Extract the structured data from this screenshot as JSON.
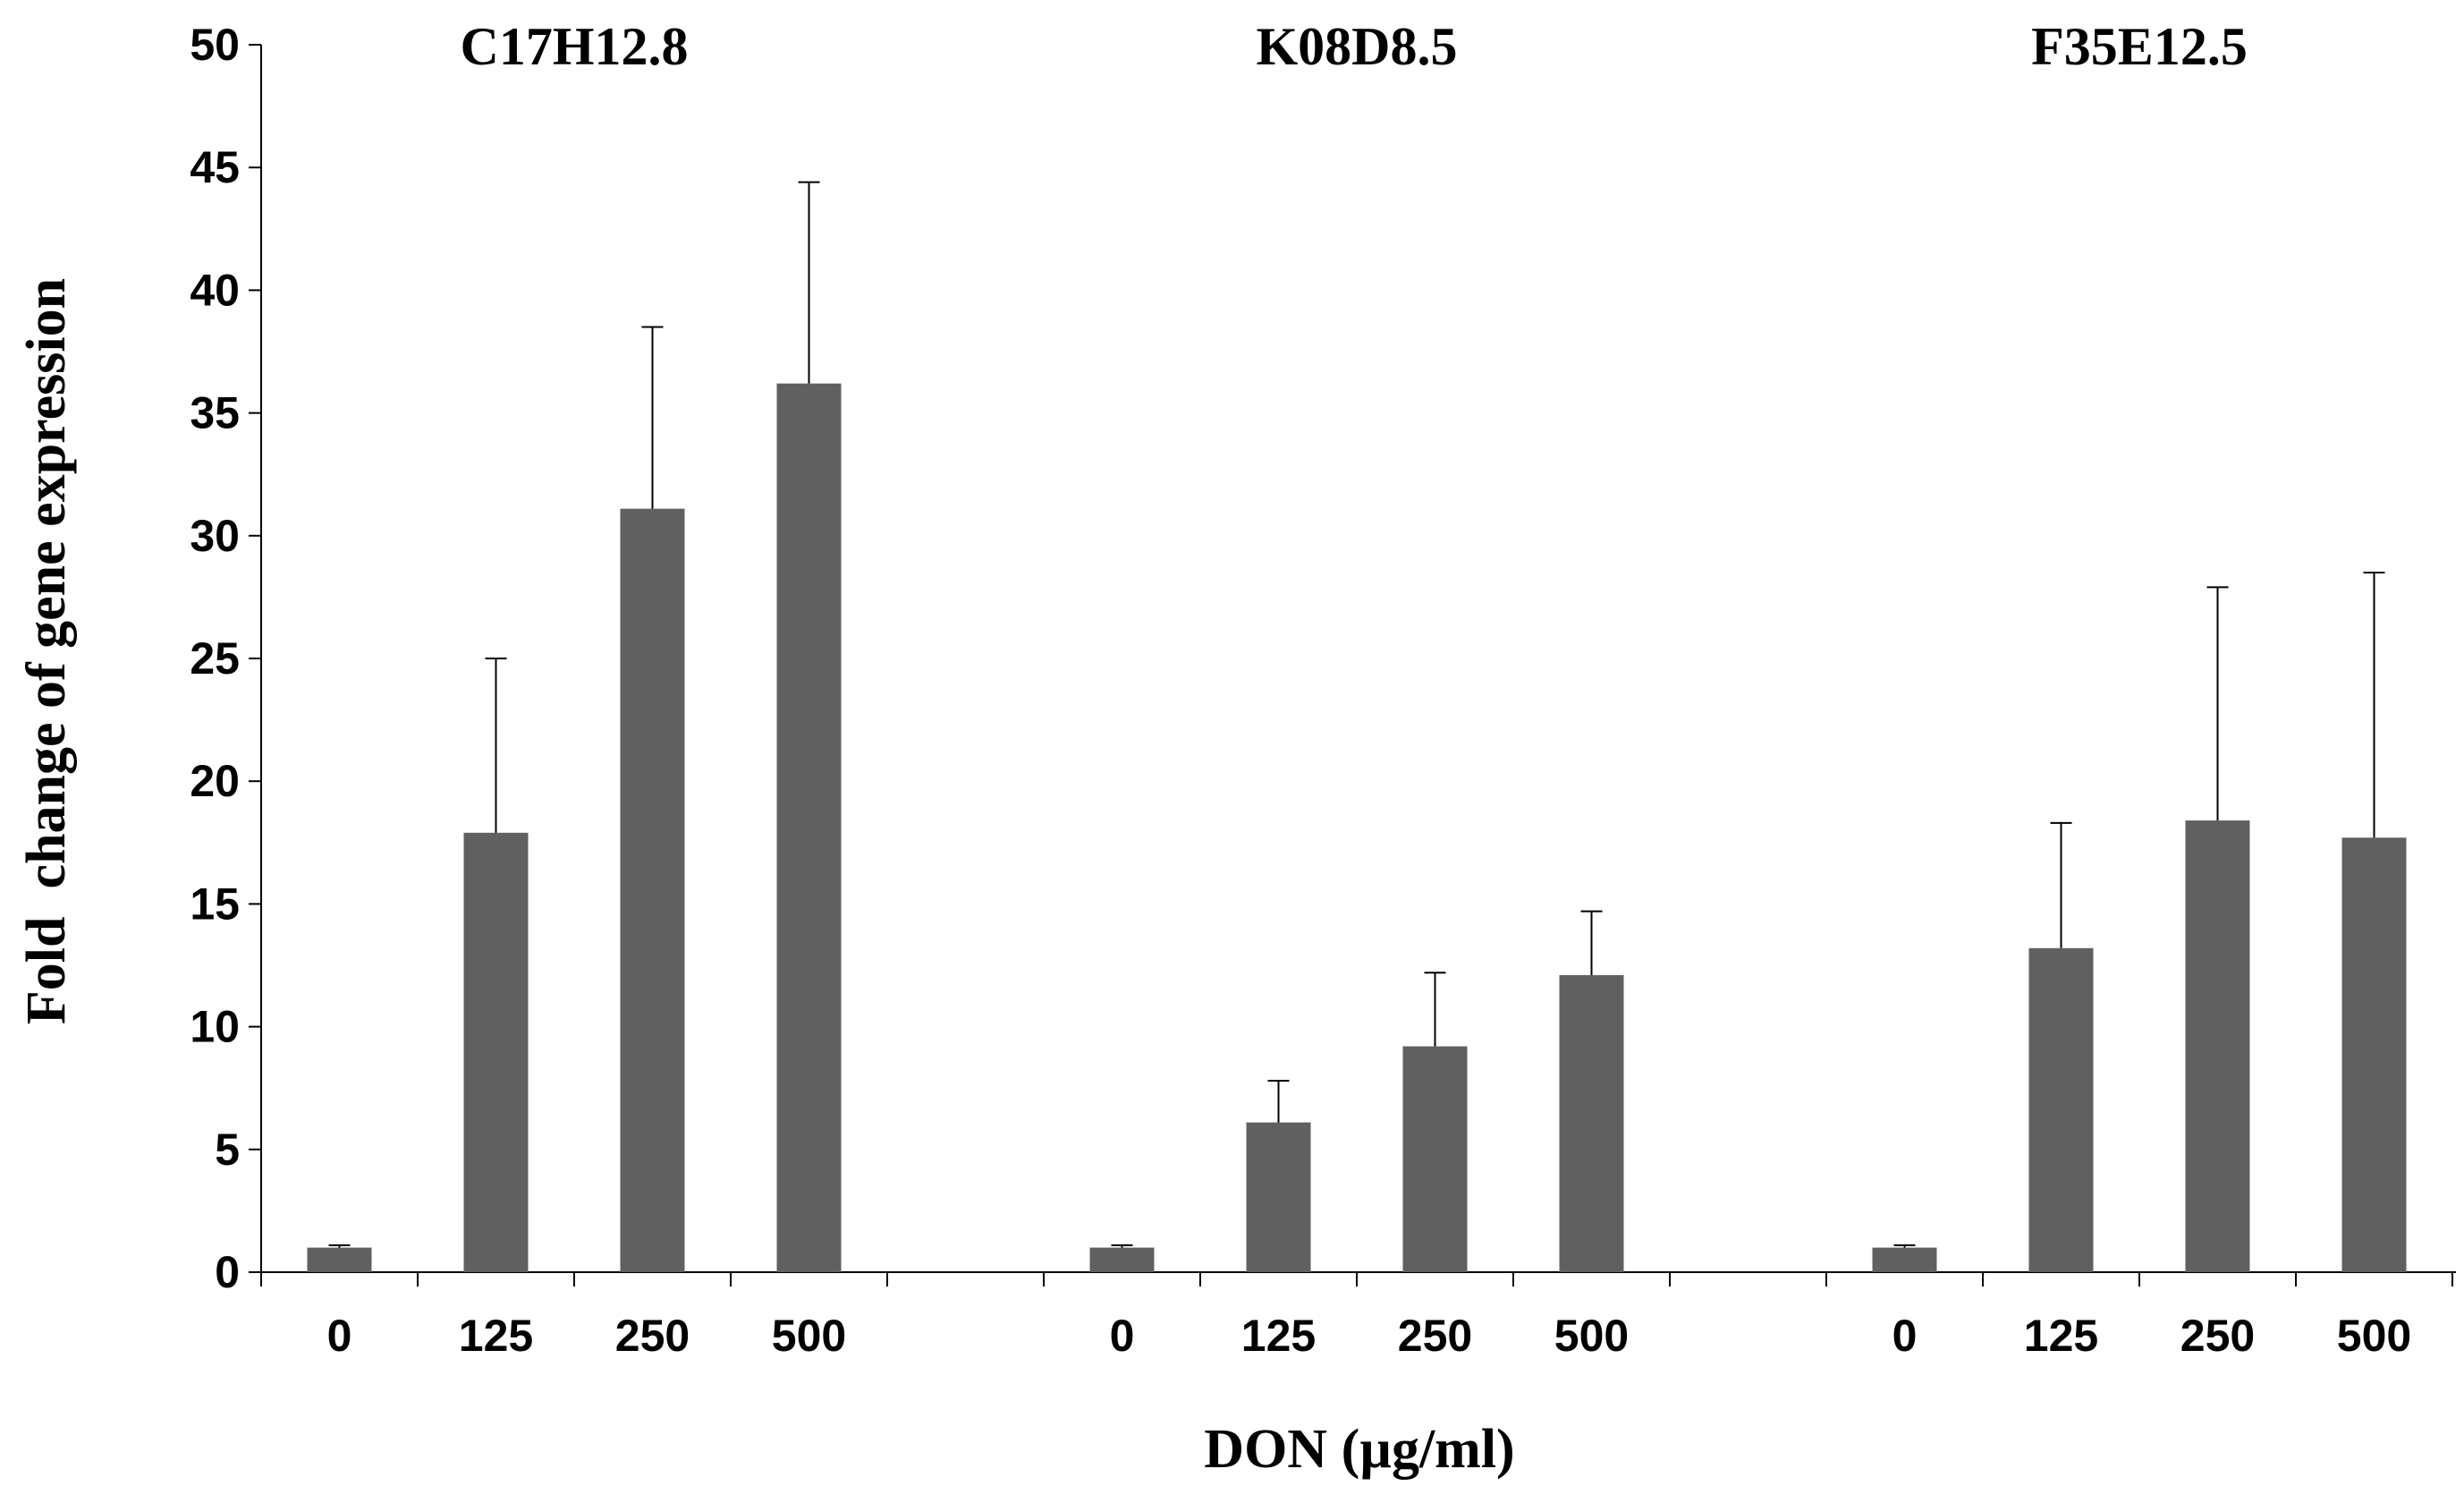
{
  "chart_data": {
    "type": "bar",
    "title": "",
    "xlabel": "DON (µg/ml)",
    "ylabel": "Fold  change of gene expression",
    "ylim": [
      0,
      50
    ],
    "yticks": [
      0,
      5,
      10,
      15,
      20,
      25,
      30,
      35,
      40,
      45,
      50
    ],
    "bar_color": "#606060",
    "groups": [
      {
        "name": "C17H12.8",
        "categories": [
          "0",
          "125",
          "250",
          "500"
        ],
        "values": [
          1.0,
          17.9,
          31.1,
          36.2
        ],
        "errors": [
          0.1,
          7.1,
          7.4,
          8.2
        ]
      },
      {
        "name": "K08D8.5",
        "categories": [
          "0",
          "125",
          "250",
          "500"
        ],
        "values": [
          1.0,
          6.1,
          9.2,
          12.1
        ],
        "errors": [
          0.1,
          1.7,
          3.0,
          2.6
        ]
      },
      {
        "name": "F35E12.5",
        "categories": [
          "0",
          "125",
          "250",
          "500"
        ],
        "values": [
          1.0,
          13.2,
          18.4,
          17.7
        ],
        "errors": [
          0.1,
          5.1,
          9.5,
          10.8
        ]
      }
    ]
  }
}
